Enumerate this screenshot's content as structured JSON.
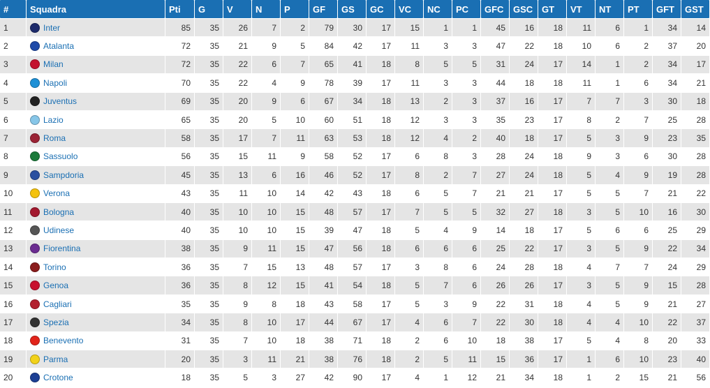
{
  "table": {
    "headers": [
      "#",
      "Squadra",
      "Pti",
      "G",
      "V",
      "N",
      "P",
      "GF",
      "GS",
      "GC",
      "VC",
      "NC",
      "PC",
      "GFC",
      "GSC",
      "GT",
      "VT",
      "NT",
      "PT",
      "GFT",
      "GST"
    ],
    "rows": [
      {
        "pos": "1",
        "team": "Inter",
        "crest_icon": "inter-crest-icon",
        "crest_color": "#1d2b6b",
        "values": [
          "85",
          "35",
          "26",
          "7",
          "2",
          "79",
          "30",
          "17",
          "15",
          "1",
          "1",
          "45",
          "16",
          "18",
          "11",
          "6",
          "1",
          "34",
          "14"
        ]
      },
      {
        "pos": "2",
        "team": "Atalanta",
        "crest_icon": "atalanta-crest-icon",
        "crest_color": "#1f4aa8",
        "values": [
          "72",
          "35",
          "21",
          "9",
          "5",
          "84",
          "42",
          "17",
          "11",
          "3",
          "3",
          "47",
          "22",
          "18",
          "10",
          "6",
          "2",
          "37",
          "20"
        ]
      },
      {
        "pos": "3",
        "team": "Milan",
        "crest_icon": "milan-crest-icon",
        "crest_color": "#c4122e",
        "values": [
          "72",
          "35",
          "22",
          "6",
          "7",
          "65",
          "41",
          "18",
          "8",
          "5",
          "5",
          "31",
          "24",
          "17",
          "14",
          "1",
          "2",
          "34",
          "17"
        ]
      },
      {
        "pos": "4",
        "team": "Napoli",
        "crest_icon": "napoli-crest-icon",
        "crest_color": "#1e90d6",
        "values": [
          "70",
          "35",
          "22",
          "4",
          "9",
          "78",
          "39",
          "17",
          "11",
          "3",
          "3",
          "44",
          "18",
          "18",
          "11",
          "1",
          "6",
          "34",
          "21"
        ]
      },
      {
        "pos": "5",
        "team": "Juventus",
        "crest_icon": "juventus-crest-icon",
        "crest_color": "#222222",
        "values": [
          "69",
          "35",
          "20",
          "9",
          "6",
          "67",
          "34",
          "18",
          "13",
          "2",
          "3",
          "37",
          "16",
          "17",
          "7",
          "7",
          "3",
          "30",
          "18"
        ]
      },
      {
        "pos": "6",
        "team": "Lazio",
        "crest_icon": "lazio-crest-icon",
        "crest_color": "#87c6e8",
        "values": [
          "65",
          "35",
          "20",
          "5",
          "10",
          "60",
          "51",
          "18",
          "12",
          "3",
          "3",
          "35",
          "23",
          "17",
          "8",
          "2",
          "7",
          "25",
          "28"
        ]
      },
      {
        "pos": "7",
        "team": "Roma",
        "crest_icon": "roma-crest-icon",
        "crest_color": "#9b2335",
        "values": [
          "58",
          "35",
          "17",
          "7",
          "11",
          "63",
          "53",
          "18",
          "12",
          "4",
          "2",
          "40",
          "18",
          "17",
          "5",
          "3",
          "9",
          "23",
          "35"
        ]
      },
      {
        "pos": "8",
        "team": "Sassuolo",
        "crest_icon": "sassuolo-crest-icon",
        "crest_color": "#1b7a3a",
        "values": [
          "56",
          "35",
          "15",
          "11",
          "9",
          "58",
          "52",
          "17",
          "6",
          "8",
          "3",
          "28",
          "24",
          "18",
          "9",
          "3",
          "6",
          "30",
          "28"
        ]
      },
      {
        "pos": "9",
        "team": "Sampdoria",
        "crest_icon": "sampdoria-crest-icon",
        "crest_color": "#2a4fa0",
        "values": [
          "45",
          "35",
          "13",
          "6",
          "16",
          "46",
          "52",
          "17",
          "8",
          "2",
          "7",
          "27",
          "24",
          "18",
          "5",
          "4",
          "9",
          "19",
          "28"
        ]
      },
      {
        "pos": "10",
        "team": "Verona",
        "crest_icon": "verona-crest-icon",
        "crest_color": "#f4c20d",
        "values": [
          "43",
          "35",
          "11",
          "10",
          "14",
          "42",
          "43",
          "18",
          "6",
          "5",
          "7",
          "21",
          "21",
          "17",
          "5",
          "5",
          "7",
          "21",
          "22"
        ]
      },
      {
        "pos": "11",
        "team": "Bologna",
        "crest_icon": "bologna-crest-icon",
        "crest_color": "#a3192f",
        "values": [
          "40",
          "35",
          "10",
          "10",
          "15",
          "48",
          "57",
          "17",
          "7",
          "5",
          "5",
          "32",
          "27",
          "18",
          "3",
          "5",
          "10",
          "16",
          "30"
        ]
      },
      {
        "pos": "12",
        "team": "Udinese",
        "crest_icon": "udinese-crest-icon",
        "crest_color": "#555555",
        "values": [
          "40",
          "35",
          "10",
          "10",
          "15",
          "39",
          "47",
          "18",
          "5",
          "4",
          "9",
          "14",
          "18",
          "17",
          "5",
          "6",
          "6",
          "25",
          "29"
        ]
      },
      {
        "pos": "13",
        "team": "Fiorentina",
        "crest_icon": "fiorentina-crest-icon",
        "crest_color": "#6b2c91",
        "values": [
          "38",
          "35",
          "9",
          "11",
          "15",
          "47",
          "56",
          "18",
          "6",
          "6",
          "6",
          "25",
          "22",
          "17",
          "3",
          "5",
          "9",
          "22",
          "34"
        ]
      },
      {
        "pos": "14",
        "team": "Torino",
        "crest_icon": "torino-crest-icon",
        "crest_color": "#8a1c1c",
        "values": [
          "36",
          "35",
          "7",
          "15",
          "13",
          "48",
          "57",
          "17",
          "3",
          "8",
          "6",
          "24",
          "28",
          "18",
          "4",
          "7",
          "7",
          "24",
          "29"
        ]
      },
      {
        "pos": "15",
        "team": "Genoa",
        "crest_icon": "genoa-crest-icon",
        "crest_color": "#c8102e",
        "values": [
          "36",
          "35",
          "8",
          "12",
          "15",
          "41",
          "54",
          "18",
          "5",
          "7",
          "6",
          "26",
          "26",
          "17",
          "3",
          "5",
          "9",
          "15",
          "28"
        ]
      },
      {
        "pos": "16",
        "team": "Cagliari",
        "crest_icon": "cagliari-crest-icon",
        "crest_color": "#b3202e",
        "values": [
          "35",
          "35",
          "9",
          "8",
          "18",
          "43",
          "58",
          "17",
          "5",
          "3",
          "9",
          "22",
          "31",
          "18",
          "4",
          "5",
          "9",
          "21",
          "27"
        ]
      },
      {
        "pos": "17",
        "team": "Spezia",
        "crest_icon": "spezia-crest-icon",
        "crest_color": "#333333",
        "values": [
          "34",
          "35",
          "8",
          "10",
          "17",
          "44",
          "67",
          "17",
          "4",
          "6",
          "7",
          "22",
          "30",
          "18",
          "4",
          "4",
          "10",
          "22",
          "37"
        ]
      },
      {
        "pos": "18",
        "team": "Benevento",
        "crest_icon": "benevento-crest-icon",
        "crest_color": "#e2231a",
        "values": [
          "31",
          "35",
          "7",
          "10",
          "18",
          "38",
          "71",
          "18",
          "2",
          "6",
          "10",
          "18",
          "38",
          "17",
          "5",
          "4",
          "8",
          "20",
          "33"
        ]
      },
      {
        "pos": "19",
        "team": "Parma",
        "crest_icon": "parma-crest-icon",
        "crest_color": "#f2d21a",
        "values": [
          "20",
          "35",
          "3",
          "11",
          "21",
          "38",
          "76",
          "18",
          "2",
          "5",
          "11",
          "15",
          "36",
          "17",
          "1",
          "6",
          "10",
          "23",
          "40"
        ]
      },
      {
        "pos": "20",
        "team": "Crotone",
        "crest_icon": "crotone-crest-icon",
        "crest_color": "#1c3f94",
        "values": [
          "18",
          "35",
          "5",
          "3",
          "27",
          "42",
          "90",
          "17",
          "4",
          "1",
          "12",
          "21",
          "34",
          "18",
          "1",
          "2",
          "15",
          "21",
          "56"
        ]
      }
    ]
  }
}
